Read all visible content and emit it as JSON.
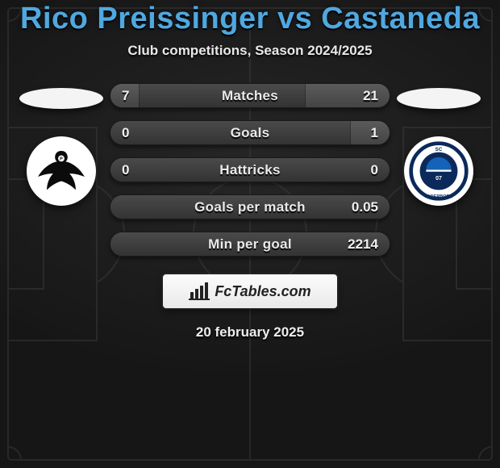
{
  "header": {
    "title": "Rico Preissinger vs Castaneda",
    "subtitle": "Club competitions, Season 2024/2025",
    "title_color": "#4fa8e0"
  },
  "date": "20 february 2025",
  "branding": {
    "text": "FcTables.com"
  },
  "sides": {
    "left": {
      "flag_color": "#f2f2f2",
      "crest_bg": "#ffffff",
      "crest_kind": "eagle"
    },
    "right": {
      "flag_color": "#f2f2f2",
      "crest_bg": "#ffffff",
      "crest_kind": "paderborn"
    }
  },
  "stats": {
    "bar_gradient_top": "#5b5b5b",
    "bar_gradient_bottom": "#444444",
    "base_gradient_top": "#4a4a4a",
    "base_gradient_bottom": "#333333",
    "text_color": "#e9e9e9",
    "rows": [
      {
        "label": "Matches",
        "left": "7",
        "right": "21",
        "left_pct": 10,
        "right_pct": 30
      },
      {
        "label": "Goals",
        "left": "0",
        "right": "1",
        "left_pct": 0,
        "right_pct": 14
      },
      {
        "label": "Hattricks",
        "left": "0",
        "right": "0",
        "left_pct": 0,
        "right_pct": 0
      },
      {
        "label": "Goals per match",
        "left": "",
        "right": "0.05",
        "left_pct": 0,
        "right_pct": 0
      },
      {
        "label": "Min per goal",
        "left": "",
        "right": "2214",
        "left_pct": 0,
        "right_pct": 0
      }
    ]
  },
  "pitch": {
    "line_color": "#3f3f3f",
    "line_opacity": 0.45
  }
}
